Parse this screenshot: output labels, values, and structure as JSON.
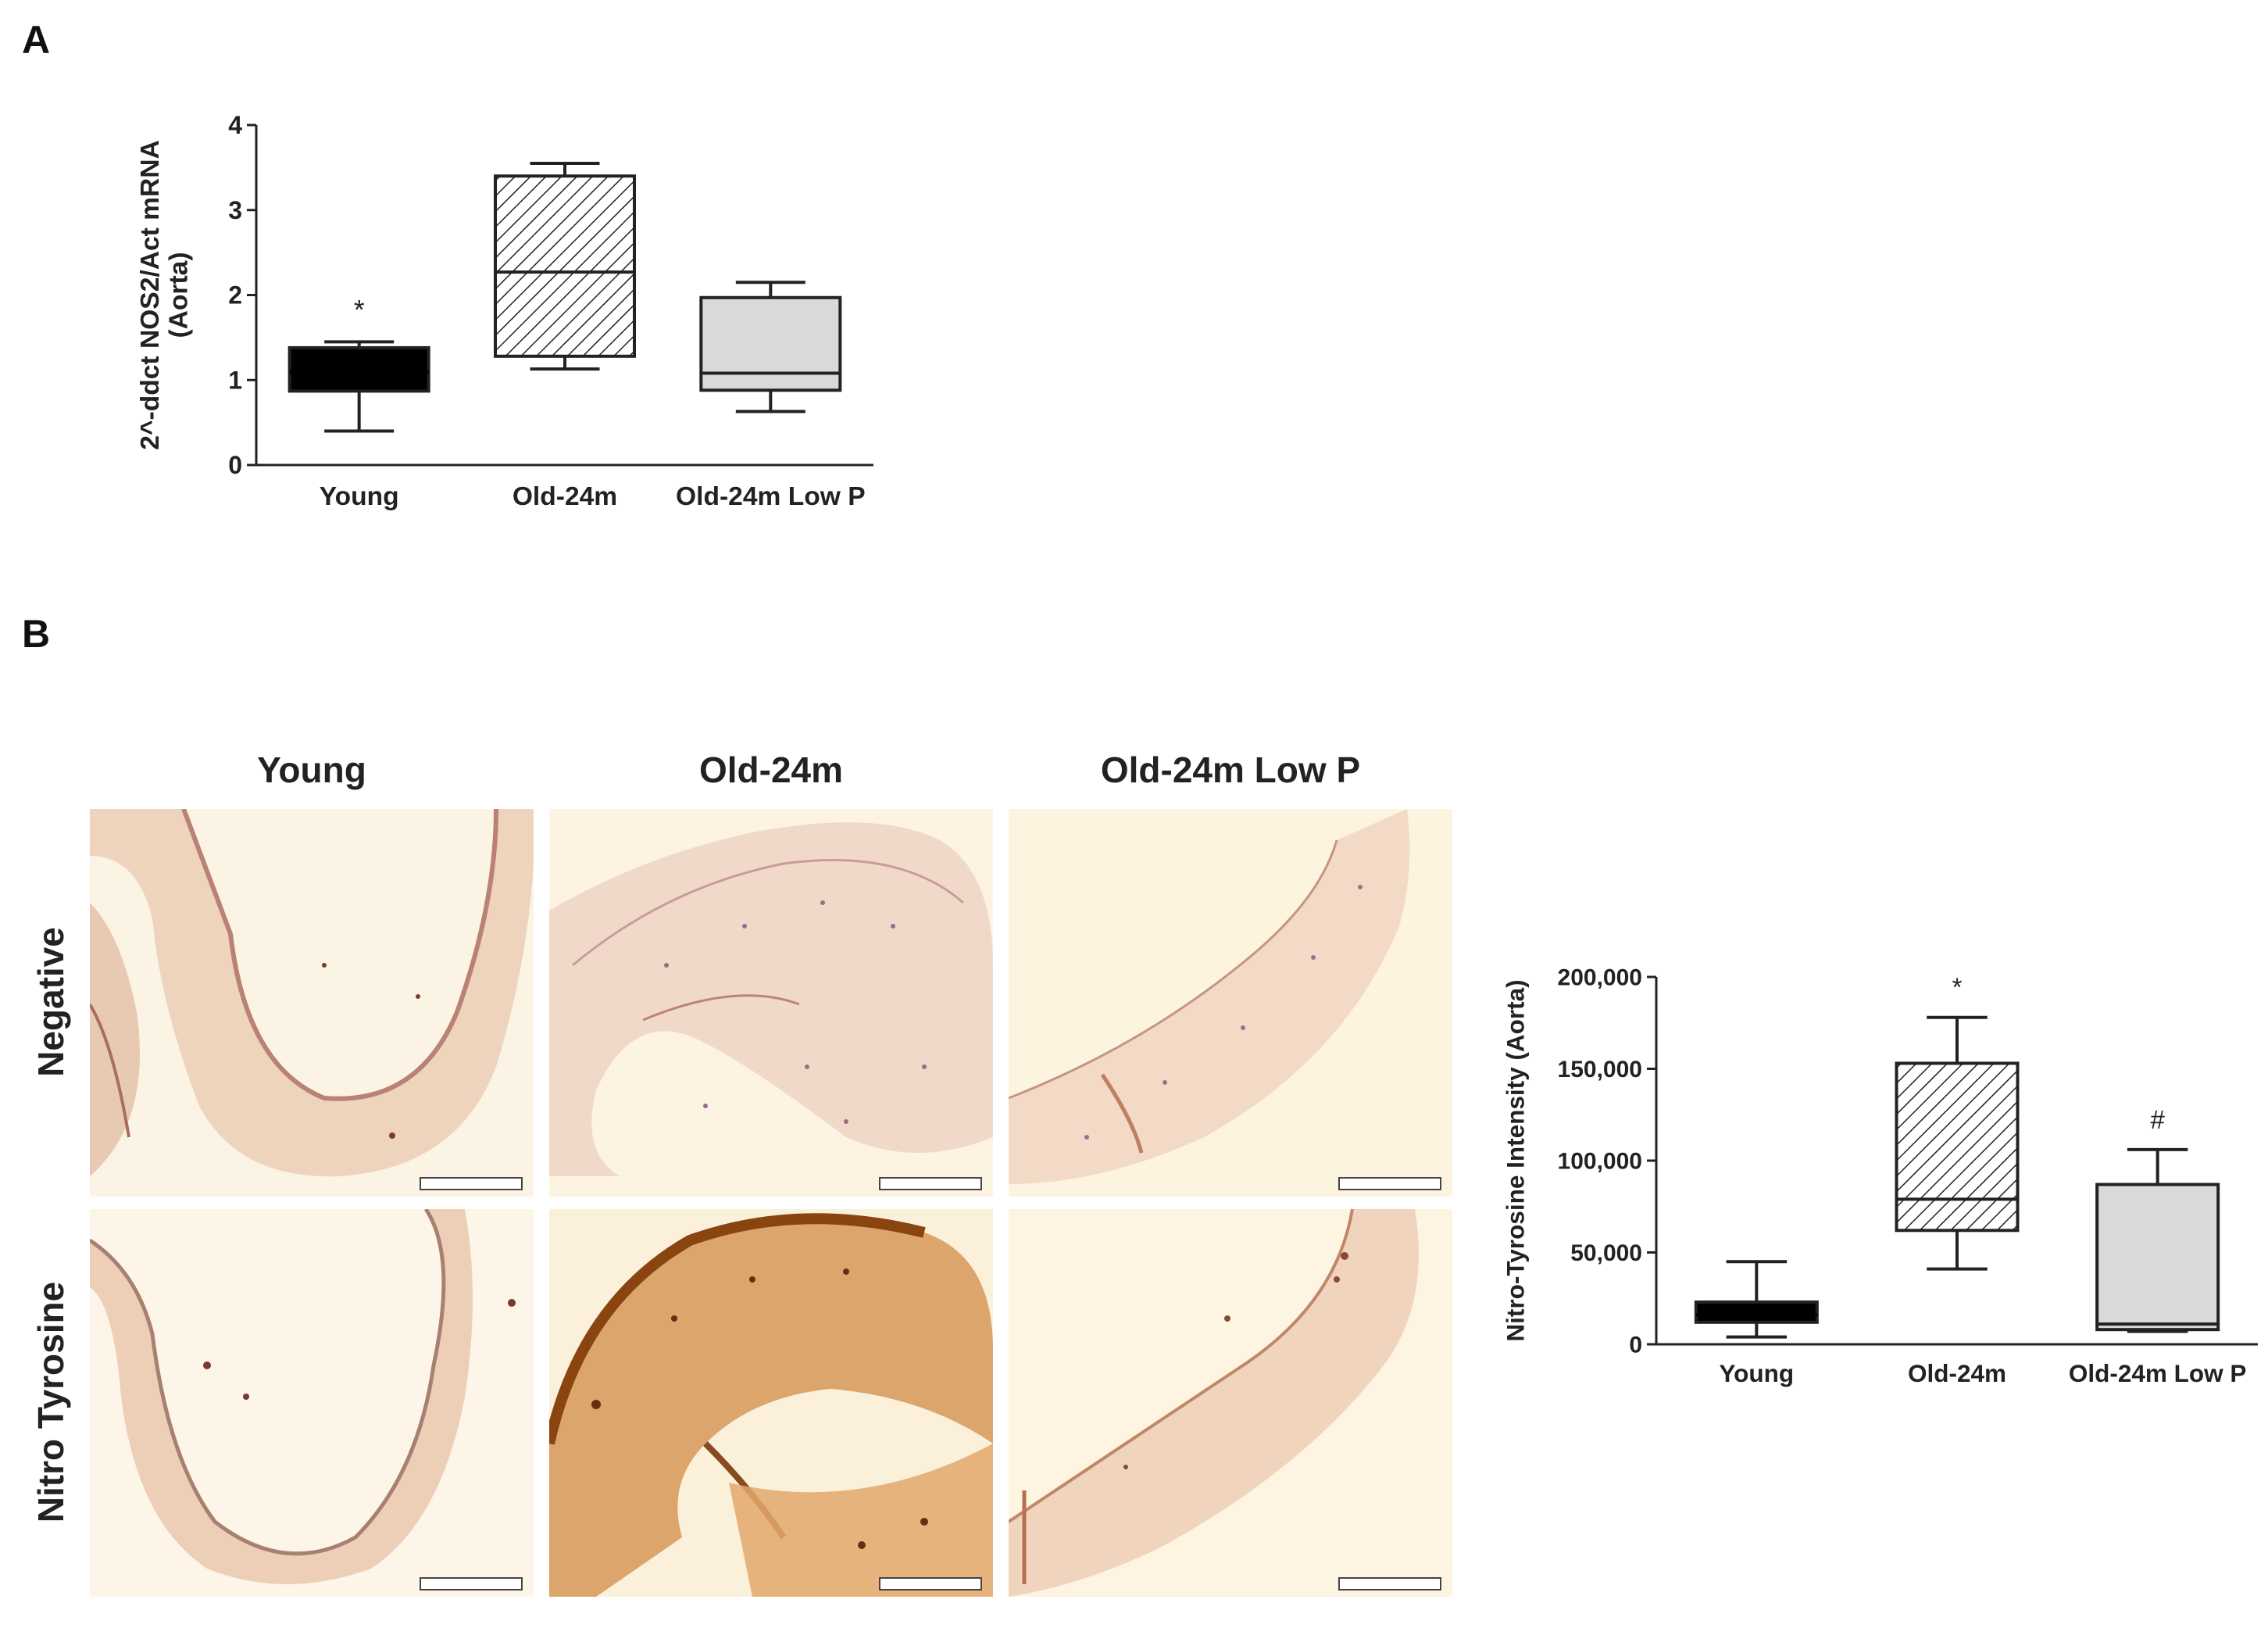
{
  "panels": {
    "a_label": "A",
    "b_label": "B"
  },
  "micrographs": {
    "columns": [
      "Young",
      "Old-24m",
      "Old-24m Low P"
    ],
    "rows": [
      "Negative",
      "Nitro Tyrosine"
    ]
  },
  "chart_data": [
    {
      "type": "box",
      "panel": "A",
      "categories": [
        "Young",
        "Old-24m",
        "Old-24m Low P"
      ],
      "ylabel": "2^-ddct NOS2/Act mRNA\n(Aorta)",
      "ylim": [
        0,
        4
      ],
      "yticks": [
        0,
        1,
        2,
        3,
        4
      ],
      "ytick_labels": [
        "0",
        "1",
        "2",
        "3",
        "4"
      ],
      "boxes": [
        {
          "min": 0.4,
          "q1": 0.87,
          "median": 1.1,
          "q3": 1.38,
          "max": 1.45,
          "fill": "#000000",
          "pattern": "solid"
        },
        {
          "min": 1.13,
          "q1": 1.28,
          "median": 2.27,
          "q3": 3.4,
          "max": 3.55,
          "fill": "#ffffff",
          "pattern": "hatch"
        },
        {
          "min": 0.63,
          "q1": 0.88,
          "median": 1.08,
          "q3": 1.97,
          "max": 2.15,
          "fill": "#d9d9d9",
          "pattern": "solid"
        }
      ],
      "annotations": [
        "*",
        "",
        ""
      ]
    },
    {
      "type": "box",
      "panel": "B",
      "categories": [
        "Young",
        "Old-24m",
        "Old-24m Low P"
      ],
      "ylabel": "Nitro-Tyrosine Intensity (Aorta)",
      "ylim": [
        0,
        200000
      ],
      "yticks": [
        0,
        50000,
        100000,
        150000,
        200000
      ],
      "ytick_labels": [
        "0",
        "50,000",
        "100,000",
        "150,000",
        "200,000"
      ],
      "boxes": [
        {
          "min": 4000,
          "q1": 12000,
          "median": 16000,
          "q3": 23000,
          "max": 45000,
          "fill": "#000000",
          "pattern": "solid"
        },
        {
          "min": 41000,
          "q1": 62000,
          "median": 79000,
          "q3": 153000,
          "max": 178000,
          "fill": "#ffffff",
          "pattern": "hatch"
        },
        {
          "min": 7000,
          "q1": 8000,
          "median": 11000,
          "q3": 87000,
          "max": 106000,
          "fill": "#d9d9d9",
          "pattern": "solid"
        }
      ],
      "annotations": [
        "",
        "*",
        "#"
      ]
    }
  ]
}
